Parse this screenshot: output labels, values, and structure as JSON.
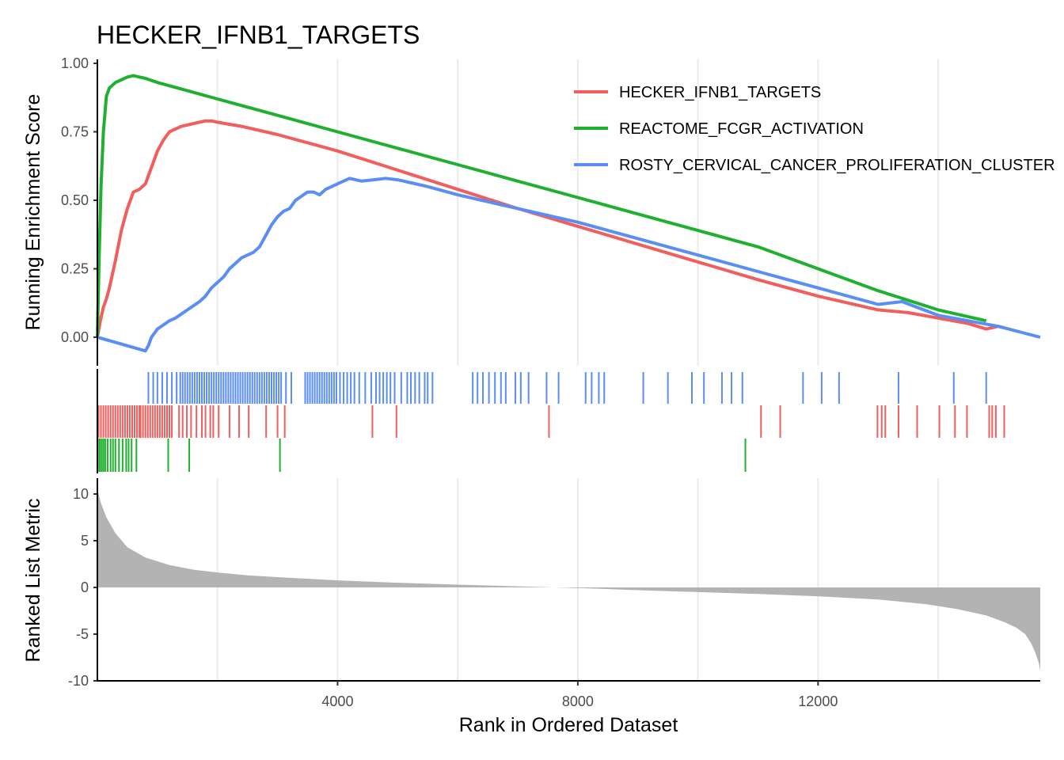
{
  "chart_data": {
    "type": "line",
    "title": "HECKER_IFNB1_TARGETS",
    "xlabel": "Rank in Ordered Dataset",
    "xlim": [
      0,
      15700
    ],
    "x_ticks": [
      4000,
      8000,
      12000
    ],
    "x_tick_labels": [
      "4000",
      "8000",
      "12000"
    ],
    "grid": "vertical",
    "legend_position": "top-right",
    "colors": {
      "HECKER_IFNB1_TARGETS": "#f05e5e",
      "REACTOME_FCGR_ACTIVATION": "#20b030",
      "ROSTY_CERVICAL_CANCER_PROLIFERATION_CLUSTER": "#5b8ef5",
      "metric": "#b3b3b3"
    },
    "enrichment": {
      "ylabel": "Running Enrichment Score",
      "ylim": [
        -0.1,
        1.0
      ],
      "y_ticks": [
        0.0,
        0.25,
        0.5,
        0.75,
        1.0
      ],
      "y_tick_labels": [
        "0.00",
        "0.25",
        "0.50",
        "0.75",
        "1.00"
      ],
      "series": [
        {
          "name": "HECKER_IFNB1_TARGETS",
          "x": [
            0,
            50,
            100,
            150,
            200,
            300,
            400,
            500,
            600,
            700,
            800,
            900,
            1000,
            1100,
            1200,
            1400,
            1600,
            1800,
            1900,
            2000,
            2400,
            3000,
            3500,
            4000,
            4500,
            5000,
            6000,
            7000,
            8000,
            9000,
            10000,
            11000,
            12000,
            13000,
            13500,
            14000,
            14500,
            14800,
            15000,
            15100
          ],
          "y": [
            0.0,
            0.06,
            0.11,
            0.14,
            0.18,
            0.28,
            0.39,
            0.47,
            0.53,
            0.54,
            0.56,
            0.62,
            0.68,
            0.72,
            0.75,
            0.77,
            0.78,
            0.79,
            0.79,
            0.785,
            0.77,
            0.74,
            0.71,
            0.68,
            0.645,
            0.61,
            0.54,
            0.47,
            0.405,
            0.34,
            0.275,
            0.21,
            0.15,
            0.1,
            0.09,
            0.07,
            0.05,
            0.03,
            0.04,
            0.035
          ]
        },
        {
          "name": "REACTOME_FCGR_ACTIVATION",
          "x": [
            0,
            30,
            60,
            100,
            150,
            200,
            300,
            400,
            500,
            600,
            700,
            800,
            1000,
            1500,
            2000,
            3000,
            4000,
            5000,
            6000,
            7000,
            8000,
            9000,
            10000,
            11000,
            12000,
            13000,
            14000,
            14800
          ],
          "y": [
            0.0,
            0.3,
            0.55,
            0.75,
            0.88,
            0.91,
            0.93,
            0.94,
            0.95,
            0.955,
            0.95,
            0.945,
            0.93,
            0.9,
            0.87,
            0.81,
            0.75,
            0.69,
            0.63,
            0.57,
            0.51,
            0.45,
            0.39,
            0.33,
            0.25,
            0.17,
            0.1,
            0.06
          ]
        },
        {
          "name": "ROSTY_CERVICAL_CANCER_PROLIFERATION_CLUSTER",
          "x": [
            0,
            400,
            800,
            850,
            900,
            1000,
            1200,
            1300,
            1500,
            1700,
            1800,
            1900,
            2000,
            2100,
            2200,
            2300,
            2400,
            2500,
            2600,
            2700,
            2800,
            2900,
            3000,
            3100,
            3200,
            3300,
            3500,
            3600,
            3700,
            3800,
            3900,
            4000,
            4200,
            4400,
            4600,
            4800,
            5000,
            5200,
            5500,
            6000,
            7000,
            8000,
            9000,
            10000,
            11000,
            12000,
            13000,
            13400,
            14000,
            14500,
            15000,
            15700
          ],
          "y": [
            0.0,
            -0.025,
            -0.05,
            -0.03,
            0.0,
            0.03,
            0.06,
            0.07,
            0.1,
            0.13,
            0.15,
            0.18,
            0.2,
            0.22,
            0.25,
            0.27,
            0.29,
            0.3,
            0.31,
            0.33,
            0.37,
            0.41,
            0.44,
            0.46,
            0.47,
            0.5,
            0.53,
            0.53,
            0.52,
            0.54,
            0.55,
            0.56,
            0.58,
            0.57,
            0.575,
            0.58,
            0.575,
            0.565,
            0.55,
            0.52,
            0.47,
            0.42,
            0.36,
            0.3,
            0.24,
            0.18,
            0.12,
            0.13,
            0.08,
            0.06,
            0.04,
            0.0
          ]
        }
      ]
    },
    "gene_hits": [
      {
        "name": "ROSTY_CERVICAL_CANCER_PROLIFERATION_CLUSTER",
        "positions": [
          850,
          930,
          1000,
          1080,
          1160,
          1240,
          1320,
          1380,
          1420,
          1460,
          1500,
          1540,
          1580,
          1620,
          1660,
          1700,
          1740,
          1780,
          1820,
          1860,
          1900,
          1940,
          1980,
          2020,
          2060,
          2100,
          2140,
          2180,
          2220,
          2260,
          2300,
          2340,
          2380,
          2420,
          2460,
          2500,
          2540,
          2580,
          2620,
          2660,
          2700,
          2740,
          2780,
          2820,
          2860,
          2900,
          2940,
          2980,
          3020,
          3060,
          3140,
          3230,
          3460,
          3500,
          3540,
          3580,
          3620,
          3660,
          3700,
          3740,
          3780,
          3820,
          3860,
          3900,
          3940,
          3980,
          4040,
          4100,
          4160,
          4220,
          4280,
          4360,
          4460,
          4560,
          4640,
          4700,
          4760,
          4820,
          4880,
          4950,
          5060,
          5160,
          5220,
          5290,
          5360,
          5450,
          5500,
          5580,
          6250,
          6330,
          6420,
          6520,
          6620,
          6720,
          6800,
          6960,
          7050,
          7180,
          7480,
          7680,
          8130,
          8230,
          8350,
          8440,
          9090,
          9500,
          9900,
          10100,
          10400,
          10560,
          10740,
          11750,
          12060,
          12350,
          13340,
          14260,
          14800
        ]
      },
      {
        "name": "HECKER_IFNB1_TARGETS",
        "positions": [
          20,
          60,
          100,
          140,
          180,
          220,
          260,
          300,
          340,
          380,
          420,
          460,
          500,
          540,
          580,
          620,
          660,
          700,
          720,
          760,
          800,
          840,
          880,
          920,
          960,
          1000,
          1040,
          1080,
          1120,
          1160,
          1200,
          1240,
          1360,
          1420,
          1490,
          1560,
          1650,
          1740,
          1800,
          1880,
          1930,
          2020,
          2200,
          2360,
          2520,
          2810,
          3000,
          3120,
          4580,
          4980,
          7520,
          11050,
          11370,
          12990,
          13060,
          13120,
          13340,
          13650,
          14020,
          14280,
          14480,
          14850,
          14900,
          14960,
          15100
        ]
      },
      {
        "name": "REACTOME_FCGR_ACTIVATION",
        "positions": [
          10,
          40,
          70,
          100,
          130,
          170,
          220,
          260,
          300,
          360,
          420,
          480,
          520,
          570,
          650,
          1180,
          1530,
          3040,
          10790
        ]
      }
    ],
    "ranked_metric": {
      "ylabel": "Ranked List Metric",
      "ylim": [
        -10,
        11
      ],
      "y_ticks": [
        -10,
        -5,
        0,
        5,
        10
      ],
      "y_tick_labels": [
        "-10",
        "-5",
        "0",
        "5",
        "10"
      ],
      "x": [
        0,
        60,
        150,
        300,
        500,
        800,
        1200,
        1600,
        2000,
        2500,
        3000,
        4000,
        5000,
        6000,
        7000,
        7600,
        8200,
        9000,
        10000,
        11000,
        12000,
        13000,
        13800,
        14300,
        14800,
        15100,
        15300,
        15450,
        15550,
        15620,
        15680,
        15700
      ],
      "y": [
        10.5,
        9.0,
        7.5,
        5.8,
        4.3,
        3.2,
        2.4,
        1.9,
        1.6,
        1.3,
        1.1,
        0.75,
        0.5,
        0.3,
        0.12,
        0.0,
        -0.1,
        -0.3,
        -0.5,
        -0.7,
        -0.95,
        -1.3,
        -1.8,
        -2.3,
        -3.0,
        -3.7,
        -4.3,
        -5.0,
        -6.0,
        -7.0,
        -8.2,
        -9.0
      ]
    }
  }
}
